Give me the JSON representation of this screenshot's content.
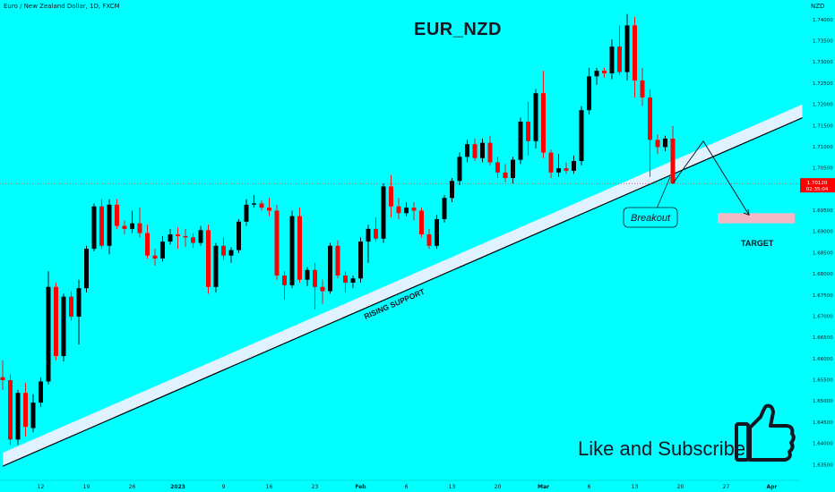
{
  "header": {
    "symbol_line": "Euro / New Zealand Dollar, 1D, FXCM",
    "currency": "NZD",
    "title": "EUR_NZD"
  },
  "annotations": {
    "support": "RISING SUPPORT",
    "breakout": "Breakout",
    "target": "TARGET",
    "cta": "Like and Subscribe"
  },
  "price_badge": {
    "price": "1.70120",
    "countdown": "02:35:04"
  },
  "colors": {
    "background": "#00ffff",
    "bull": "#000000",
    "bear": "#ff0000",
    "support_band": "#e0f1ff",
    "target_zone": "#f2b8c6"
  },
  "icons": [
    "thumbs-up-icon"
  ],
  "chart_data": {
    "type": "candlestick",
    "title": "EUR_NZD",
    "y_ticks": [
      "1.74000",
      "1.73500",
      "1.73000",
      "1.72500",
      "1.72000",
      "1.71500",
      "1.71000",
      "1.70500",
      "1.70000",
      "1.69500",
      "1.69000",
      "1.68500",
      "1.68000",
      "1.67500",
      "1.67000",
      "1.66500",
      "1.66000",
      "1.65500",
      "1.65000",
      "1.64500",
      "1.64000",
      "1.63500"
    ],
    "x_ticks": [
      "12",
      "19",
      "26",
      "2023",
      "9",
      "16",
      "23",
      "Feb",
      "6",
      "13",
      "20",
      "Mar",
      "6",
      "13",
      "20",
      "27",
      "Apr"
    ],
    "x_tick_index": [
      5,
      11,
      17,
      23,
      29,
      35,
      41,
      47,
      53,
      59,
      65,
      71,
      77,
      83,
      89,
      95,
      101
    ],
    "ylim": [
      1.632,
      1.7445
    ],
    "last_price": 1.7012,
    "candles": [
      [
        1.6555,
        1.6595,
        1.6525,
        1.6548
      ],
      [
        1.6548,
        1.6562,
        1.6395,
        1.6408
      ],
      [
        1.6408,
        1.6525,
        1.6395,
        1.6518
      ],
      [
        1.6518,
        1.6542,
        1.6415,
        1.6438
      ],
      [
        1.6435,
        1.6515,
        1.6425,
        1.6495
      ],
      [
        1.6495,
        1.6555,
        1.6485,
        1.6545
      ],
      [
        1.6545,
        1.6805,
        1.6538,
        1.6768
      ],
      [
        1.6768,
        1.6778,
        1.6595,
        1.6605
      ],
      [
        1.6605,
        1.6752,
        1.6592,
        1.6745
      ],
      [
        1.6745,
        1.6758,
        1.6688,
        1.6698
      ],
      [
        1.6698,
        1.6785,
        1.6632,
        1.6765
      ],
      [
        1.6765,
        1.6865,
        1.6755,
        1.6858
      ],
      [
        1.6858,
        1.6965,
        1.6852,
        1.6958
      ],
      [
        1.6958,
        1.6975,
        1.6858,
        1.6865
      ],
      [
        1.6865,
        1.6975,
        1.6845,
        1.6962
      ],
      [
        1.6962,
        1.6975,
        1.6905,
        1.6912
      ],
      [
        1.6912,
        1.6925,
        1.6892,
        1.6905
      ],
      [
        1.6905,
        1.6948,
        1.6895,
        1.6918
      ],
      [
        1.6918,
        1.6955,
        1.6885,
        1.6895
      ],
      [
        1.6895,
        1.6915,
        1.6835,
        1.6842
      ],
      [
        1.6842,
        1.6858,
        1.6818,
        1.6835
      ],
      [
        1.6835,
        1.6888,
        1.6828,
        1.6875
      ],
      [
        1.6875,
        1.6905,
        1.6868,
        1.6892
      ],
      [
        1.6892,
        1.6908,
        1.6858,
        1.6888
      ],
      [
        1.6888,
        1.6905,
        1.6862,
        1.6885
      ],
      [
        1.6885,
        1.6895,
        1.686,
        1.6872
      ],
      [
        1.6872,
        1.6912,
        1.6865,
        1.6902
      ],
      [
        1.6902,
        1.6915,
        1.6752,
        1.6768
      ],
      [
        1.6768,
        1.6872,
        1.6755,
        1.6865
      ],
      [
        1.6865,
        1.6885,
        1.6832,
        1.6842
      ],
      [
        1.6842,
        1.6862,
        1.6825,
        1.6855
      ],
      [
        1.6855,
        1.6928,
        1.6848,
        1.6922
      ],
      [
        1.6922,
        1.6975,
        1.6912,
        1.6962
      ],
      [
        1.6962,
        1.6985,
        1.6955,
        1.6965
      ],
      [
        1.6965,
        1.6972,
        1.6948,
        1.6955
      ],
      [
        1.6955,
        1.6978,
        1.6935,
        1.6948
      ],
      [
        1.6948,
        1.6962,
        1.6785,
        1.6795
      ],
      [
        1.6795,
        1.6805,
        1.6738,
        1.6772
      ],
      [
        1.6772,
        1.6948,
        1.6765,
        1.6935
      ],
      [
        1.6935,
        1.6955,
        1.6778,
        1.6785
      ],
      [
        1.6785,
        1.6815,
        1.677,
        1.6808
      ],
      [
        1.6808,
        1.6825,
        1.6715,
        1.6768
      ],
      [
        1.6768,
        1.6785,
        1.6728,
        1.6758
      ],
      [
        1.6758,
        1.6872,
        1.6752,
        1.6865
      ],
      [
        1.6865,
        1.6878,
        1.6788,
        1.6795
      ],
      [
        1.6795,
        1.6805,
        1.6755,
        1.6778
      ],
      [
        1.6778,
        1.6795,
        1.6765,
        1.6788
      ],
      [
        1.6788,
        1.6885,
        1.6778,
        1.6875
      ],
      [
        1.6875,
        1.6915,
        1.6825,
        1.6905
      ],
      [
        1.6905,
        1.6932,
        1.6875,
        1.6882
      ],
      [
        1.6882,
        1.7012,
        1.6872,
        1.7005
      ],
      [
        1.7005,
        1.7032,
        1.6932,
        1.6958
      ],
      [
        1.6958,
        1.6978,
        1.6928,
        1.6942
      ],
      [
        1.6942,
        1.6968,
        1.6935,
        1.6955
      ],
      [
        1.6955,
        1.6968,
        1.6925,
        1.6948
      ],
      [
        1.6948,
        1.6955,
        1.6885,
        1.6892
      ],
      [
        1.6892,
        1.6905,
        1.6858,
        1.6865
      ],
      [
        1.6865,
        1.6938,
        1.6858,
        1.6928
      ],
      [
        1.6928,
        1.6985,
        1.692,
        1.6978
      ],
      [
        1.6978,
        1.7025,
        1.6968,
        1.7018
      ],
      [
        1.7018,
        1.7085,
        1.7008,
        1.7075
      ],
      [
        1.7075,
        1.7115,
        1.7062,
        1.7105
      ],
      [
        1.7105,
        1.7118,
        1.7065,
        1.7072
      ],
      [
        1.7072,
        1.7118,
        1.7062,
        1.7108
      ],
      [
        1.7108,
        1.7125,
        1.7055,
        1.7062
      ],
      [
        1.7062,
        1.7075,
        1.7025,
        1.7038
      ],
      [
        1.7038,
        1.7058,
        1.7015,
        1.7025
      ],
      [
        1.7025,
        1.7075,
        1.7012,
        1.7068
      ],
      [
        1.7068,
        1.7168,
        1.7058,
        1.7158
      ],
      [
        1.7158,
        1.7205,
        1.7078,
        1.7112
      ],
      [
        1.7112,
        1.7235,
        1.7095,
        1.7225
      ],
      [
        1.7225,
        1.7278,
        1.7072,
        1.7085
      ],
      [
        1.7085,
        1.7092,
        1.7025,
        1.7038
      ],
      [
        1.7038,
        1.7082,
        1.7028,
        1.7048
      ],
      [
        1.7048,
        1.7062,
        1.7035,
        1.7042
      ],
      [
        1.7042,
        1.7078,
        1.7035,
        1.7065
      ],
      [
        1.7065,
        1.7195,
        1.7055,
        1.7185
      ],
      [
        1.7185,
        1.7285,
        1.7175,
        1.7265
      ],
      [
        1.7265,
        1.7285,
        1.7245,
        1.7278
      ],
      [
        1.7278,
        1.7285,
        1.7262,
        1.7272
      ],
      [
        1.7272,
        1.7352,
        1.7258,
        1.7335
      ],
      [
        1.7335,
        1.7385,
        1.7268,
        1.7275
      ],
      [
        1.7275,
        1.7412,
        1.7255,
        1.7385
      ],
      [
        1.7385,
        1.7405,
        1.7215,
        1.7255
      ],
      [
        1.7255,
        1.7285,
        1.7195,
        1.7215
      ],
      [
        1.7215,
        1.7235,
        1.7028,
        1.7115
      ],
      [
        1.7115,
        1.7128,
        1.7082,
        1.7098
      ],
      [
        1.7098,
        1.7125,
        1.7088,
        1.7118
      ],
      [
        1.7118,
        1.7148,
        1.7012,
        1.7012
      ]
    ],
    "support_line": {
      "from": [
        0,
        1.6345
      ],
      "to": [
        105,
        1.7167
      ]
    },
    "target_zone": [
      1.6918,
      1.6942
    ],
    "projection": [
      [
        1.7012,
        88
      ],
      [
        1.7112,
        92
      ],
      [
        1.6938,
        98
      ]
    ]
  }
}
